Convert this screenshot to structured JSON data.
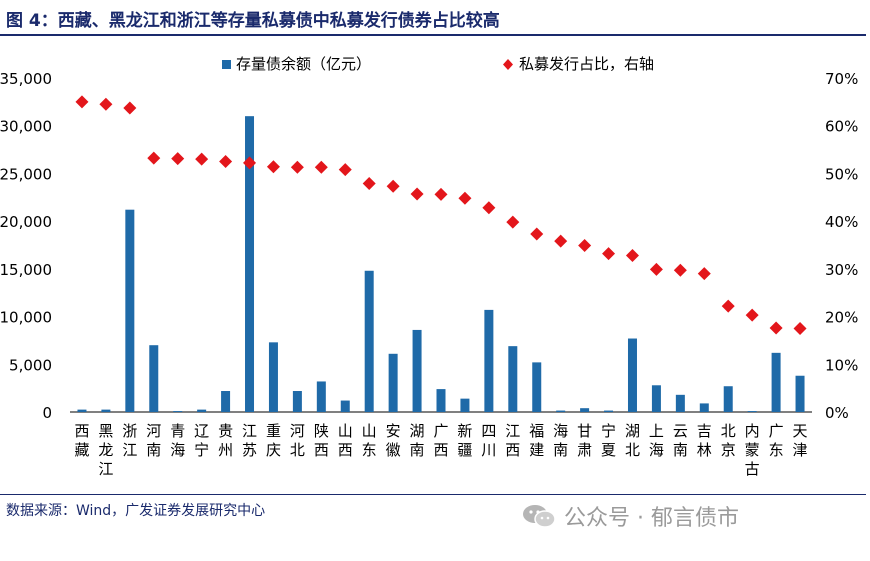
{
  "title": "图 4：西藏、黑龙江和浙江等存量私募债中私募发行债券占比较高",
  "source": "数据来源：Wind，广发证券发展研究中心",
  "watermark": "公众号 · 郁言债市",
  "colors": {
    "bar": "#1f6aa8",
    "marker": "#e3161b",
    "text": "#1a2a6c"
  },
  "chart_data": {
    "type": "bar",
    "categories": [
      "西藏",
      "黑龙江",
      "浙江",
      "河南",
      "青海",
      "辽宁",
      "贵州",
      "江苏",
      "重庆",
      "河北",
      "陕西",
      "山西",
      "山东",
      "安徽",
      "湖南",
      "广西",
      "新疆",
      "四川",
      "江西",
      "福建",
      "海南",
      "甘肃",
      "宁夏",
      "湖北",
      "上海",
      "云南",
      "吉林",
      "北京",
      "内蒙古",
      "广东",
      "天津"
    ],
    "series": [
      {
        "name": "存量债余额（亿元）",
        "type": "bar",
        "axis": "left",
        "values": [
          250,
          250,
          21200,
          7000,
          100,
          250,
          2200,
          31000,
          7300,
          2200,
          3200,
          1200,
          14800,
          6100,
          8600,
          2400,
          1400,
          10700,
          6900,
          5200,
          150,
          400,
          150,
          7700,
          2800,
          1800,
          900,
          2700,
          100,
          6200,
          3800
        ]
      },
      {
        "name": "私募发行占比，右轴",
        "type": "scatter",
        "axis": "right",
        "values": [
          65,
          64.5,
          63.7,
          53.2,
          53.1,
          53,
          52.5,
          52.2,
          51.4,
          51.3,
          51.3,
          50.8,
          47.9,
          47.3,
          45.7,
          45.6,
          44.8,
          42.8,
          39.8,
          37.3,
          35.8,
          34.9,
          33.2,
          32.8,
          29.9,
          29.7,
          29,
          22.2,
          20.3,
          17.6,
          17.5
        ]
      }
    ],
    "y_left": {
      "min": 0,
      "max": 35000,
      "ticks": [
        "0",
        "5,000",
        "10,000",
        "15,000",
        "20,000",
        "25,000",
        "30,000",
        "35,000"
      ]
    },
    "y_right": {
      "min": 0,
      "max": 70,
      "ticks": [
        "0%",
        "10%",
        "20%",
        "30%",
        "40%",
        "50%",
        "60%",
        "70%"
      ]
    },
    "grid": false,
    "legend": "top"
  }
}
